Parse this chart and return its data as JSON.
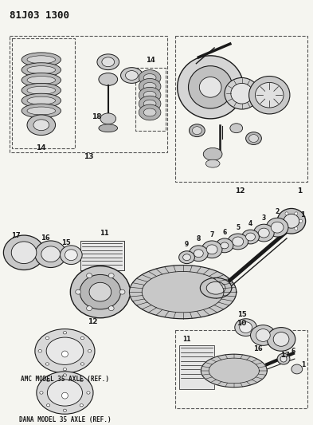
{
  "title": "81J03 1300",
  "bg_color": "#f5f5f0",
  "line_color": "#1a1a1a",
  "dashed_box_color": "#555555",
  "amc_text": "AMC MODEL 35 AXLE (REF.)",
  "dana_text": "DANA MODEL 35 AXLE (REF.)",
  "figsize": [
    3.93,
    5.33
  ],
  "dpi": 100
}
